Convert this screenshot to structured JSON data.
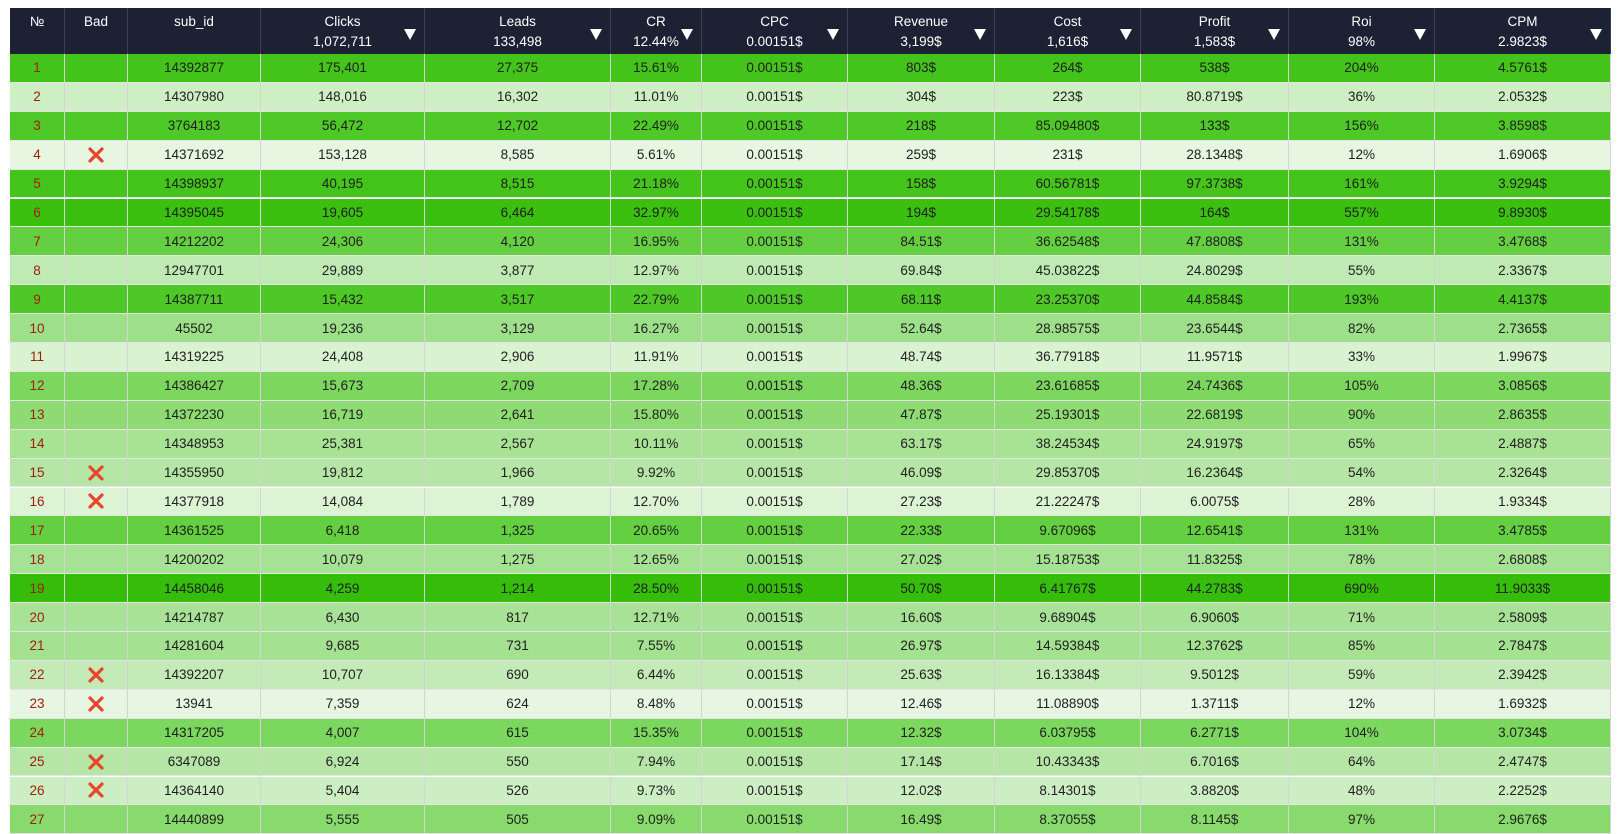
{
  "header": [
    {
      "label": "№"
    },
    {
      "label": "Bad"
    },
    {
      "label": "sub_id"
    },
    {
      "label": "Clicks",
      "total": "1,072,711"
    },
    {
      "label": "Leads",
      "total": "133,498"
    },
    {
      "label": "CR",
      "total": "12.44%"
    },
    {
      "label": "CPC",
      "total": "0.00151$"
    },
    {
      "label": "Revenue",
      "total": "3,199$"
    },
    {
      "label": "Cost",
      "total": "1,616$"
    },
    {
      "label": "Profit",
      "total": "1,583$"
    },
    {
      "label": "Roi",
      "total": "98%"
    },
    {
      "label": "CPM",
      "total": "2.9823$"
    }
  ],
  "rows": [
    {
      "color": "#44c41a",
      "bad": false,
      "cells": [
        "1",
        "14392877",
        "175,401",
        "27,375",
        "15.61%",
        "0.00151$",
        "803$",
        "264$",
        "538$",
        "204%",
        "4.5761$"
      ]
    },
    {
      "color": "#cdefc3",
      "bad": false,
      "cells": [
        "2",
        "14307980",
        "148,016",
        "16,302",
        "11.01%",
        "0.00151$",
        "304$",
        "223$",
        "80.8719$",
        "36%",
        "2.0532$"
      ]
    },
    {
      "color": "#4fc927",
      "bad": false,
      "cells": [
        "3",
        "3764183",
        "56,472",
        "12,702",
        "22.49%",
        "0.00151$",
        "218$",
        "85.09480$",
        "133$",
        "156%",
        "3.8598$"
      ]
    },
    {
      "color": "#e6f6e0",
      "bad": true,
      "cells": [
        "4",
        "14371692",
        "153,128",
        "8,585",
        "5.61%",
        "0.00151$",
        "259$",
        "231$",
        "28.1348$",
        "12%",
        "1.6906$"
      ]
    },
    {
      "color": "#45c51c",
      "bad": false,
      "cells": [
        "5",
        "14398937",
        "40,195",
        "8,515",
        "21.18%",
        "0.00151$",
        "158$",
        "60.56781$",
        "97.3738$",
        "161%",
        "3.9294$"
      ]
    },
    {
      "color": "#3bc010",
      "bad": false,
      "cells": [
        "6",
        "14395045",
        "19,605",
        "6,464",
        "32.97%",
        "0.00151$",
        "194$",
        "29.54178$",
        "164$",
        "557%",
        "9.8930$"
      ]
    },
    {
      "color": "#65cf42",
      "bad": false,
      "cells": [
        "7",
        "14212202",
        "24,306",
        "4,120",
        "16.95%",
        "0.00151$",
        "84.51$",
        "36.62548$",
        "47.8808$",
        "131%",
        "3.4768$"
      ]
    },
    {
      "color": "#c0eab3",
      "bad": false,
      "cells": [
        "8",
        "12947701",
        "29,889",
        "3,877",
        "12.97%",
        "0.00151$",
        "69.84$",
        "45.03822$",
        "24.8029$",
        "55%",
        "2.3367$"
      ]
    },
    {
      "color": "#4ec826",
      "bad": false,
      "cells": [
        "9",
        "14387711",
        "15,432",
        "3,517",
        "22.79%",
        "0.00151$",
        "68.11$",
        "23.25370$",
        "44.8584$",
        "193%",
        "4.4137$"
      ]
    },
    {
      "color": "#9edf8a",
      "bad": false,
      "cells": [
        "10",
        "45502",
        "19,236",
        "3,129",
        "16.27%",
        "0.00151$",
        "52.64$",
        "28.98575$",
        "23.6544$",
        "82%",
        "2.7365$"
      ]
    },
    {
      "color": "#d9f2d0",
      "bad": false,
      "cells": [
        "11",
        "14319225",
        "24,408",
        "2,906",
        "11.91%",
        "0.00151$",
        "48.74$",
        "36.77918$",
        "11.9571$",
        "33%",
        "1.9967$"
      ]
    },
    {
      "color": "#7dd75f",
      "bad": false,
      "cells": [
        "12",
        "14386427",
        "15,673",
        "2,709",
        "17.28%",
        "0.00151$",
        "48.36$",
        "23.61685$",
        "24.7436$",
        "105%",
        "3.0856$"
      ]
    },
    {
      "color": "#8ddb72",
      "bad": false,
      "cells": [
        "13",
        "14372230",
        "16,719",
        "2,641",
        "15.80%",
        "0.00151$",
        "47.87$",
        "25.19301$",
        "22.6819$",
        "90%",
        "2.8635$"
      ]
    },
    {
      "color": "#a8e295",
      "bad": false,
      "cells": [
        "14",
        "14348953",
        "25,381",
        "2,567",
        "10.11%",
        "0.00151$",
        "63.17$",
        "38.24534$",
        "24.9197$",
        "65%",
        "2.4887$"
      ]
    },
    {
      "color": "#b5e6a5",
      "bad": true,
      "cells": [
        "15",
        "14355950",
        "19,812",
        "1,966",
        "9.92%",
        "0.00151$",
        "46.09$",
        "29.85370$",
        "16.2364$",
        "54%",
        "2.3264$"
      ]
    },
    {
      "color": "#dcf3d4",
      "bad": true,
      "cells": [
        "16",
        "14377918",
        "14,084",
        "1,789",
        "12.70%",
        "0.00151$",
        "27.23$",
        "21.22247$",
        "6.0075$",
        "28%",
        "1.9334$"
      ]
    },
    {
      "color": "#64cf40",
      "bad": false,
      "cells": [
        "17",
        "14361525",
        "6,418",
        "1,325",
        "20.65%",
        "0.00151$",
        "22.33$",
        "9.67096$",
        "12.6541$",
        "131%",
        "3.4785$"
      ]
    },
    {
      "color": "#a6e293",
      "bad": false,
      "cells": [
        "18",
        "14200202",
        "10,079",
        "1,275",
        "12.65%",
        "0.00151$",
        "27.02$",
        "15.18753$",
        "11.8325$",
        "78%",
        "2.6808$"
      ]
    },
    {
      "color": "#36bd0a",
      "bad": false,
      "cells": [
        "19",
        "14458046",
        "4,259",
        "1,214",
        "28.50%",
        "0.00151$",
        "50.70$",
        "6.41767$",
        "44.2783$",
        "690%",
        "11.9033$"
      ]
    },
    {
      "color": "#a8e296",
      "bad": false,
      "cells": [
        "20",
        "14214787",
        "6,430",
        "817",
        "12.71%",
        "0.00151$",
        "16.60$",
        "9.68904$",
        "6.9060$",
        "71%",
        "2.5809$"
      ]
    },
    {
      "color": "#a4e190",
      "bad": false,
      "cells": [
        "21",
        "14281604",
        "9,685",
        "731",
        "7.55%",
        "0.00151$",
        "26.97$",
        "14.59384$",
        "12.3762$",
        "85%",
        "2.7847$"
      ]
    },
    {
      "color": "#c4ebb7",
      "bad": true,
      "cells": [
        "22",
        "14392207",
        "10,707",
        "690",
        "6.44%",
        "0.00151$",
        "25.63$",
        "16.13384$",
        "9.5012$",
        "59%",
        "2.3942$"
      ]
    },
    {
      "color": "#e7f6e2",
      "bad": true,
      "cells": [
        "23",
        "13941",
        "7,359",
        "624",
        "8.48%",
        "0.00151$",
        "12.46$",
        "11.08890$",
        "1.3711$",
        "12%",
        "1.6932$"
      ]
    },
    {
      "color": "#7cd75f",
      "bad": false,
      "cells": [
        "24",
        "14317205",
        "4,007",
        "615",
        "15.35%",
        "0.00151$",
        "12.32$",
        "6.03795$",
        "6.2771$",
        "104%",
        "3.0734$"
      ]
    },
    {
      "color": "#b6e6a6",
      "bad": true,
      "cells": [
        "25",
        "6347089",
        "6,924",
        "550",
        "7.94%",
        "0.00151$",
        "17.14$",
        "10.43343$",
        "6.7016$",
        "64%",
        "2.4747$"
      ]
    },
    {
      "color": "#cdeec2",
      "bad": true,
      "cells": [
        "26",
        "14364140",
        "5,404",
        "526",
        "9.73%",
        "0.00151$",
        "12.02$",
        "8.14301$",
        "3.8820$",
        "48%",
        "2.2252$"
      ]
    },
    {
      "color": "#89da6d",
      "bad": false,
      "cells": [
        "27",
        "14440899",
        "5,555",
        "505",
        "9.09%",
        "0.00151$",
        "16.49$",
        "8.37055$",
        "8.1145$",
        "97%",
        "2.9676$"
      ]
    }
  ]
}
